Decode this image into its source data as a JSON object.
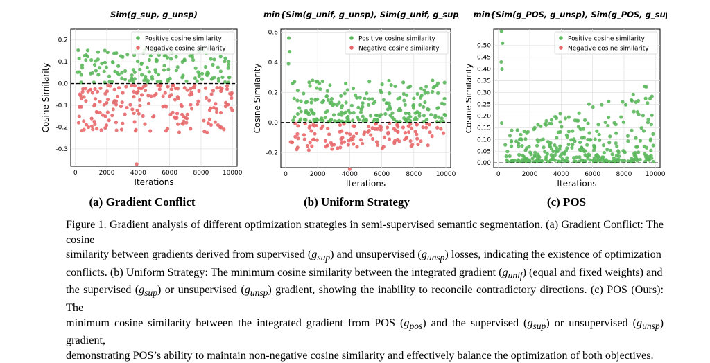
{
  "colors": {
    "positive": "#5cb85c",
    "negative": "#e8696b",
    "grid": "#e3e3e3",
    "zero_line": "#000000"
  },
  "panels": [
    {
      "label": "(a) Gradient Conflict",
      "title_math": "Sim(g_sup, g_unsp)",
      "legend": [
        "Positive cosine similarity",
        "Negative cosine similarity"
      ],
      "ylabel": "Cosine Similarity",
      "xlabel": "Iterations",
      "xticks": [
        "0",
        "2000",
        "4000",
        "6000",
        "8000",
        "10000"
      ],
      "yticks": [
        "-0.3",
        "-0.2",
        "-0.1",
        "0.0",
        "0.1",
        "0.2"
      ]
    },
    {
      "label": "(b) Uniform Strategy",
      "title_math": "min{Sim(g_unif, g_unsp), Sim(g_unif, g_sup)}",
      "legend": [
        "Positive cosine similarity",
        "Negative cosine similarity"
      ],
      "ylabel": "Cosine Similarity",
      "xlabel": "Iterations",
      "xticks": [
        "0",
        "2000",
        "4000",
        "6000",
        "8000",
        "10000"
      ],
      "yticks": [
        "-0.2",
        "0.0",
        "0.2",
        "0.4",
        "0.6"
      ]
    },
    {
      "label": "(c) POS",
      "title_math": "min{Sim(g_POS, g_unsp), Sim(g_POS, g_sup)}",
      "legend": [
        "Positive cosine similarity",
        "Negative cosine similarity"
      ],
      "ylabel": "Cosine Similarity",
      "xlabel": "Iterations",
      "xticks": [
        "0",
        "2000",
        "4000",
        "6000",
        "8000",
        "10000"
      ],
      "yticks": [
        "0.00",
        "0.05",
        "0.10",
        "0.15",
        "0.20",
        "0.25",
        "0.30",
        "0.35",
        "0.40",
        "0.45",
        "0.50"
      ]
    }
  ],
  "caption": {
    "line1": "Figure 1. Gradient analysis of different optimization strategies in semi-supervised semantic segmentation. (a) Gradient Conflict: The cosine",
    "line2a": "similarity between gradients derived from supervised (",
    "line2b": ") and unsupervised (",
    "line2c": ") losses, indicating the existence of optimization",
    "line3a": "conflicts. (b) Uniform Strategy: The minimum cosine similarity between the integrated gradient (",
    "line3b": ") (equal and fixed weights) and",
    "line4a": "the supervised (",
    "line4b": ") or unsupervised (",
    "line4c": ") gradient, showing the inability to reconcile contradictory directions. (c) POS (Ours): The",
    "line5a": "minimum cosine similarity between the integrated gradient from POS (",
    "line5b": ") and the supervised (",
    "line5c": ") or unsupervised (",
    "line5d": ") gradient,",
    "line6": "demonstrating POS’s ability to maintain non-negative cosine similarity and effectively balance the optimization of both objectives.",
    "g_sup": "g",
    "g_sup_sub": "sup",
    "g_unsp": "g",
    "g_unsp_sub": "unsp",
    "g_unif": "g",
    "g_unif_sub": "unif",
    "g_pos": "g",
    "g_pos_sub": "pos"
  },
  "chart_data": [
    {
      "type": "scatter",
      "title": "Sim(g_sup, g_unsp)",
      "xlabel": "Iterations",
      "ylabel": "Cosine Similarity",
      "xlim": [
        -300,
        10300
      ],
      "ylim": [
        -0.38,
        0.25
      ],
      "grid": true,
      "legend_position": "top-right",
      "reference_line_y": 0.0,
      "series": [
        {
          "name": "Positive cosine similarity",
          "color": "#5cb85c",
          "summary": "about 150 points between 0.0 and 0.17 across 0–10000 iterations"
        },
        {
          "name": "Negative cosine similarity",
          "color": "#e8696b",
          "summary": "about 200 points between 0.0 and -0.24, one outlier near -0.37 at ~3900"
        }
      ]
    },
    {
      "type": "scatter",
      "title": "min{Sim(g_unif, g_unsp), Sim(g_unif, g_sup)}",
      "xlabel": "Iterations",
      "ylabel": "Cosine Similarity",
      "xlim": [
        -300,
        10300
      ],
      "ylim": [
        -0.3,
        0.62
      ],
      "grid": true,
      "legend_position": "top-right",
      "reference_line_y": 0.0,
      "series": [
        {
          "name": "Positive cosine similarity",
          "color": "#5cb85c",
          "summary": "mostly 0.0–0.3; early outliers 0.39–0.56 near 200"
        },
        {
          "name": "Negative cosine similarity",
          "color": "#e8696b",
          "summary": "0.0 to -0.2, outlier near -0.31 at ~4000"
        }
      ]
    },
    {
      "type": "scatter",
      "title": "min{Sim(g_POS, g_unsp), Sim(g_POS, g_sup)}",
      "xlabel": "Iterations",
      "ylabel": "Cosine Similarity",
      "xlim": [
        -300,
        10300
      ],
      "ylim": [
        -0.02,
        0.57
      ],
      "grid": true,
      "legend_position": "top-right",
      "reference_line_y": 0.0,
      "series": [
        {
          "name": "Positive cosine similarity",
          "color": "#5cb85c",
          "summary": "mostly 0.0–0.35; early outliers 0.4–0.56 near 200"
        },
        {
          "name": "Negative cosine similarity",
          "color": "#e8696b",
          "summary": "no points"
        }
      ]
    }
  ]
}
